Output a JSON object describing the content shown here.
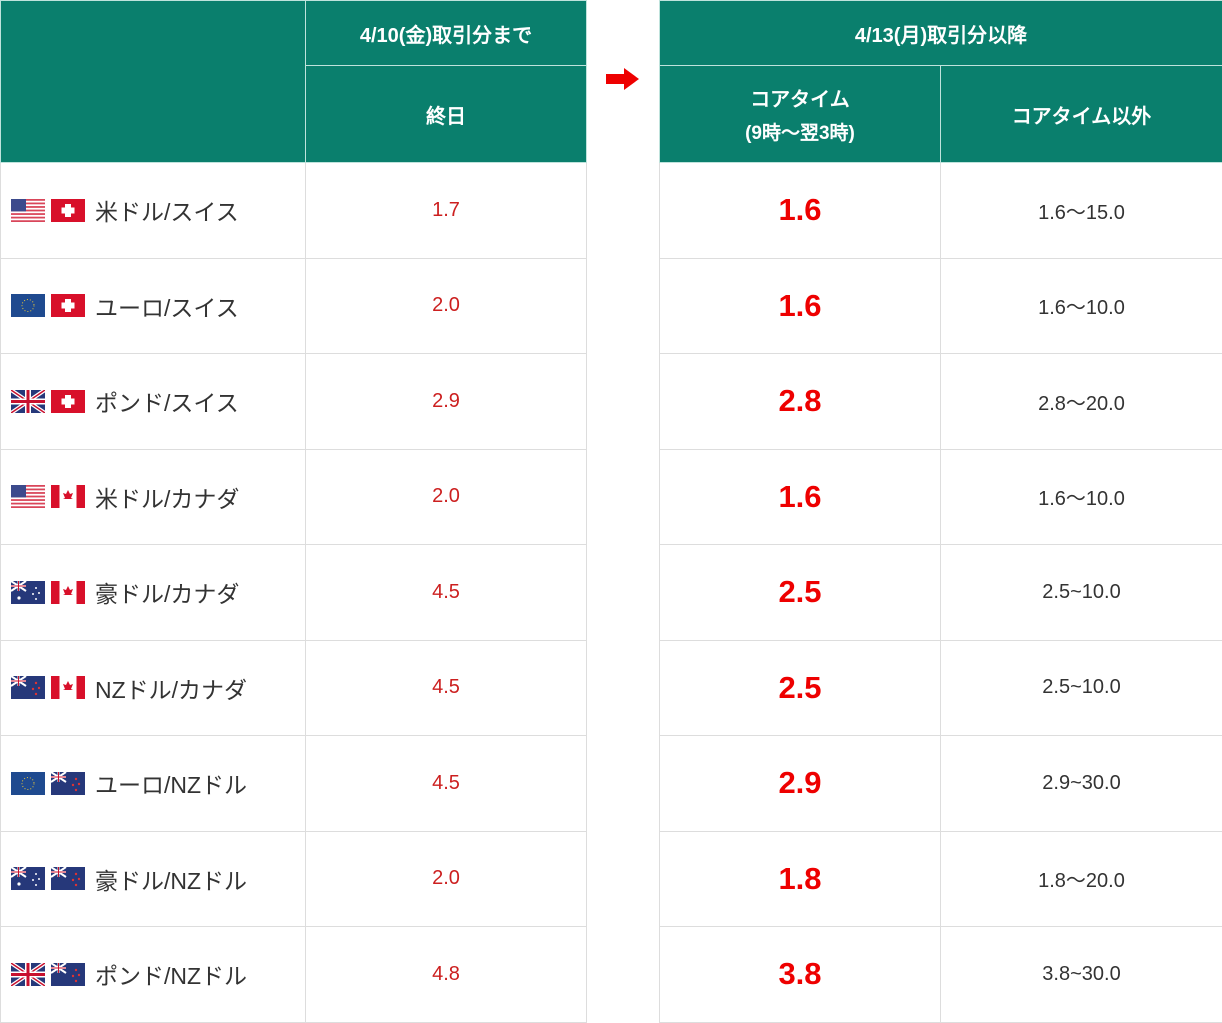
{
  "header": {
    "before_period": "4/10(金)取引分まで",
    "before_col": "終日",
    "after_period": "4/13(月)取引分以降",
    "core_col": "コアタイム",
    "core_col_sub": "(9時～翌3時)",
    "other_col": "コアタイム以外"
  },
  "arrow_icon": "right-arrow",
  "colors": {
    "header": "#0a7f6d",
    "accent": "#e00000"
  },
  "rows": [
    {
      "flags": [
        "us",
        "ch"
      ],
      "pair": "米ドル/スイス",
      "old": "1.7",
      "core": "1.6",
      "other": "1.6～15.0"
    },
    {
      "flags": [
        "eu",
        "ch"
      ],
      "pair": "ユーロ/スイス",
      "old": "2.0",
      "core": "1.6",
      "other": "1.6～10.0"
    },
    {
      "flags": [
        "gb",
        "ch"
      ],
      "pair": "ポンド/スイス",
      "old": "2.9",
      "core": "2.8",
      "other": "2.8～20.0"
    },
    {
      "flags": [
        "us",
        "ca"
      ],
      "pair": "米ドル/カナダ",
      "old": "2.0",
      "core": "1.6",
      "other": "1.6～10.0"
    },
    {
      "flags": [
        "au",
        "ca"
      ],
      "pair": "豪ドル/カナダ",
      "old": "4.5",
      "core": "2.5",
      "other": "2.5~10.0"
    },
    {
      "flags": [
        "nz",
        "ca"
      ],
      "pair": "NZドル/カナダ",
      "old": "4.5",
      "core": "2.5",
      "other": "2.5~10.0"
    },
    {
      "flags": [
        "eu",
        "nz"
      ],
      "pair": "ユーロ/NZドル",
      "old": "4.5",
      "core": "2.9",
      "other": "2.9~30.0"
    },
    {
      "flags": [
        "au",
        "nz"
      ],
      "pair": "豪ドル/NZドル",
      "old": "2.0",
      "core": "1.8",
      "other": "1.8～20.0"
    },
    {
      "flags": [
        "gb",
        "nz"
      ],
      "pair": "ポンド/NZドル",
      "old": "4.8",
      "core": "3.8",
      "other": "3.8~30.0"
    }
  ]
}
